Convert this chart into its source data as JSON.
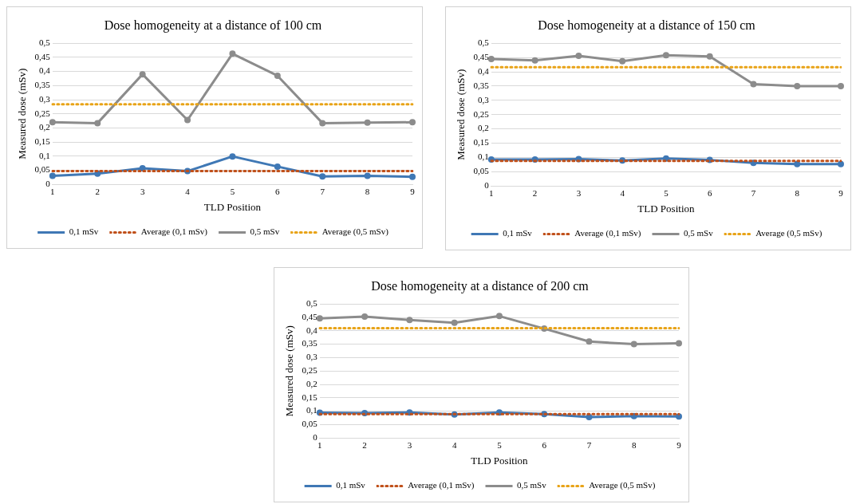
{
  "chart_data": [
    {
      "type": "line",
      "title": "Dose homogeneity at a distance of 100 cm",
      "xlabel": "TLD Position",
      "ylabel": "Measured dose (mSv)",
      "categories": [
        "1",
        "2",
        "3",
        "4",
        "5",
        "6",
        "7",
        "8",
        "9"
      ],
      "ylim": [
        0,
        0.5
      ],
      "yticks": [
        {
          "value": 0,
          "label": "0"
        },
        {
          "value": 0.05,
          "label": "0,05"
        },
        {
          "value": 0.1,
          "label": "0,1"
        },
        {
          "value": 0.15,
          "label": "0,15"
        },
        {
          "value": 0.2,
          "label": "0,2"
        },
        {
          "value": 0.25,
          "label": "0,25"
        },
        {
          "value": 0.3,
          "label": "0,3"
        },
        {
          "value": 0.35,
          "label": "0,35"
        },
        {
          "value": 0.4,
          "label": "0,4"
        },
        {
          "value": 0.45,
          "label": "0,45"
        },
        {
          "value": 0.5,
          "label": "0,5"
        }
      ],
      "grid": "y",
      "legend": "bottom",
      "series": [
        {
          "name": "0,1 mSv",
          "color": "#3f78b5",
          "marker": "circle",
          "line_style": "solid",
          "values": [
            0.03,
            0.038,
            0.057,
            0.047,
            0.099,
            0.063,
            0.028,
            0.03,
            0.027
          ]
        },
        {
          "name": "Average (0,1 mSv)",
          "color": "#c0501a",
          "marker": "none",
          "line_style": "dotted",
          "values": [
            0.047,
            0.047,
            0.047,
            0.047,
            0.047,
            0.047,
            0.047,
            0.047,
            0.047
          ]
        },
        {
          "name": "0,5 mSv",
          "color": "#8c8c8c",
          "marker": "circle",
          "line_style": "solid",
          "values": [
            0.22,
            0.217,
            0.39,
            0.228,
            0.463,
            0.385,
            0.217,
            0.219,
            0.22
          ]
        },
        {
          "name": "Average (0,5 mSv)",
          "color": "#e8a317",
          "marker": "none",
          "line_style": "dotted",
          "values": [
            0.284,
            0.284,
            0.284,
            0.284,
            0.284,
            0.284,
            0.284,
            0.284,
            0.284
          ]
        }
      ]
    },
    {
      "type": "line",
      "title": "Dose homogeneity at a distance of 150 cm",
      "xlabel": "TLD Position",
      "ylabel": "Measured dose (mSv)",
      "categories": [
        "1",
        "2",
        "3",
        "4",
        "5",
        "6",
        "7",
        "8",
        "9"
      ],
      "ylim": [
        0,
        0.5
      ],
      "yticks": [
        {
          "value": 0,
          "label": "0"
        },
        {
          "value": 0.05,
          "label": "0,05"
        },
        {
          "value": 0.1,
          "label": "0,1"
        },
        {
          "value": 0.15,
          "label": "0,15"
        },
        {
          "value": 0.2,
          "label": "0,2"
        },
        {
          "value": 0.25,
          "label": "0,25"
        },
        {
          "value": 0.3,
          "label": "0,3"
        },
        {
          "value": 0.35,
          "label": "0,35"
        },
        {
          "value": 0.4,
          "label": "0,4"
        },
        {
          "value": 0.45,
          "label": "0,45"
        },
        {
          "value": 0.5,
          "label": "0,5"
        }
      ],
      "grid": "y",
      "legend": "bottom",
      "series": [
        {
          "name": "0,1 mSv",
          "color": "#3f78b5",
          "marker": "circle",
          "line_style": "solid",
          "values": [
            0.093,
            0.093,
            0.094,
            0.089,
            0.096,
            0.091,
            0.081,
            0.077,
            0.077
          ]
        },
        {
          "name": "Average (0,1 mSv)",
          "color": "#c0501a",
          "marker": "none",
          "line_style": "dotted",
          "values": [
            0.088,
            0.088,
            0.088,
            0.088,
            0.088,
            0.088,
            0.088,
            0.088,
            0.088
          ]
        },
        {
          "name": "0,5 mSv",
          "color": "#8c8c8c",
          "marker": "circle",
          "line_style": "solid",
          "values": [
            0.445,
            0.44,
            0.456,
            0.437,
            0.458,
            0.454,
            0.357,
            0.35,
            0.35
          ]
        },
        {
          "name": "Average (0,5 mSv)",
          "color": "#e8a317",
          "marker": "none",
          "line_style": "dotted",
          "values": [
            0.416,
            0.416,
            0.416,
            0.416,
            0.416,
            0.416,
            0.416,
            0.416,
            0.416
          ]
        }
      ]
    },
    {
      "type": "line",
      "title": "Dose homogeneity at a distance of 200 cm",
      "xlabel": "TLD Position",
      "ylabel": "Measured dose (mSv)",
      "categories": [
        "1",
        "2",
        "3",
        "4",
        "5",
        "6",
        "7",
        "8",
        "9"
      ],
      "ylim": [
        0,
        0.5
      ],
      "yticks": [
        {
          "value": 0,
          "label": "0"
        },
        {
          "value": 0.05,
          "label": "0,05"
        },
        {
          "value": 0.1,
          "label": "0,1"
        },
        {
          "value": 0.15,
          "label": "0,15"
        },
        {
          "value": 0.2,
          "label": "0,2"
        },
        {
          "value": 0.25,
          "label": "0,25"
        },
        {
          "value": 0.3,
          "label": "0,3"
        },
        {
          "value": 0.35,
          "label": "0,35"
        },
        {
          "value": 0.4,
          "label": "0,4"
        },
        {
          "value": 0.45,
          "label": "0,45"
        },
        {
          "value": 0.5,
          "label": "0,5"
        }
      ],
      "grid": "y",
      "legend": "bottom",
      "series": [
        {
          "name": "0,1 mSv",
          "color": "#3f78b5",
          "marker": "circle",
          "line_style": "solid",
          "values": [
            0.094,
            0.093,
            0.095,
            0.088,
            0.095,
            0.089,
            0.078,
            0.082,
            0.08
          ]
        },
        {
          "name": "Average (0,1 mSv)",
          "color": "#c0501a",
          "marker": "none",
          "line_style": "dotted",
          "values": [
            0.089,
            0.089,
            0.089,
            0.089,
            0.089,
            0.089,
            0.089,
            0.089,
            0.089
          ]
        },
        {
          "name": "0,5 mSv",
          "color": "#8c8c8c",
          "marker": "circle",
          "line_style": "solid",
          "values": [
            0.446,
            0.453,
            0.44,
            0.43,
            0.455,
            0.408,
            0.36,
            0.35,
            0.353
          ]
        },
        {
          "name": "Average (0,5 mSv)",
          "color": "#e8a317",
          "marker": "none",
          "line_style": "dotted",
          "values": [
            0.41,
            0.41,
            0.41,
            0.41,
            0.41,
            0.41,
            0.41,
            0.41,
            0.41
          ]
        }
      ]
    }
  ]
}
